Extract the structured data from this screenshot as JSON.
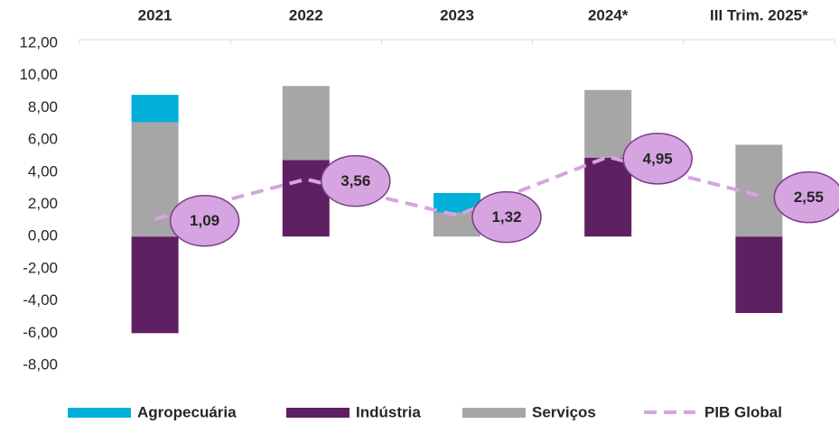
{
  "chart_data": {
    "type": "bar",
    "categories": [
      "2021",
      "2022",
      "2023",
      "2024*",
      "III Trim. 2025*"
    ],
    "series": [
      {
        "name": "Agropecuária",
        "color": "#00b0d8",
        "values": [
          1.7,
          0,
          1.2,
          0,
          0
        ]
      },
      {
        "name": "Indústria",
        "color": "#5f1f63",
        "values": [
          -6.0,
          4.75,
          0,
          4.9,
          -4.75
        ]
      },
      {
        "name": "Serviços",
        "color": "#a6a6a6",
        "values": [
          7.1,
          4.6,
          1.5,
          4.2,
          5.7
        ]
      },
      {
        "name": "PIB Global",
        "color": "#d6a4e0",
        "type": "line",
        "values": [
          1.09,
          3.56,
          1.32,
          4.95,
          2.55
        ],
        "value_labels": [
          "1,09",
          "3,56",
          "1,32",
          "4,95",
          "2,55"
        ]
      }
    ],
    "ylim": [
      -8,
      12
    ],
    "yticks": [
      {
        "value": 12,
        "label": "12,00"
      },
      {
        "value": 10,
        "label": "10,00"
      },
      {
        "value": 8,
        "label": "8,00"
      },
      {
        "value": 6,
        "label": "6,00"
      },
      {
        "value": 4,
        "label": "4,00"
      },
      {
        "value": 2,
        "label": "2,00"
      },
      {
        "value": 0,
        "label": "0,00"
      },
      {
        "value": -2,
        "label": "-2,00"
      },
      {
        "value": -4,
        "label": "-4,00"
      },
      {
        "value": -6,
        "label": "-6,00"
      },
      {
        "value": -8,
        "label": "-8,00"
      }
    ],
    "stack_order": [
      1,
      2,
      0
    ],
    "legend": "bottom"
  }
}
